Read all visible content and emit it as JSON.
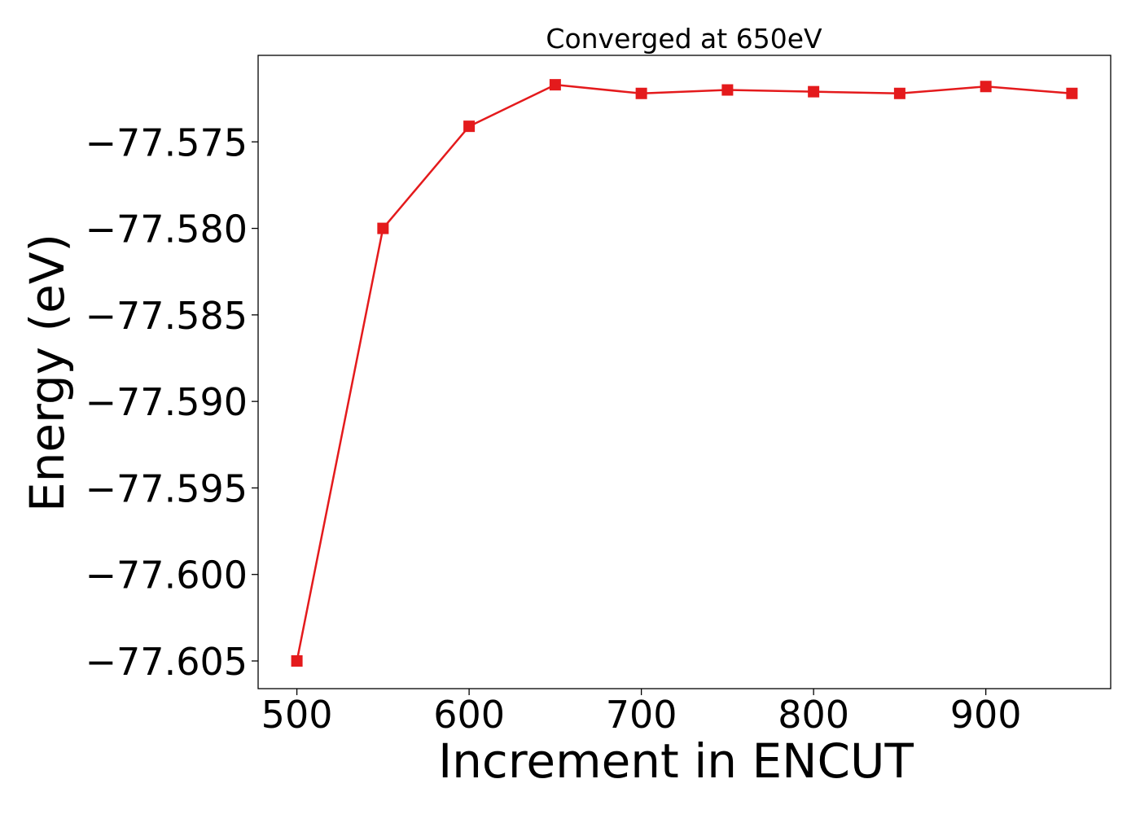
{
  "chart_data": {
    "type": "line",
    "title": "Converged at 650eV",
    "xlabel": "Increment in ENCUT",
    "ylabel": "Energy (eV)",
    "x": [
      500,
      550,
      600,
      650,
      700,
      750,
      800,
      850,
      900,
      950
    ],
    "series": [
      {
        "values": [
          -77.605,
          -77.58,
          -77.5741,
          -77.5717,
          -77.5722,
          -77.572,
          -77.5721,
          -77.5722,
          -77.5718,
          -77.5722
        ],
        "color": "#e41a1c",
        "marker": "square"
      }
    ],
    "xlim": [
      477.5,
      972.5
    ],
    "ylim": [
      -77.6066,
      -77.57
    ],
    "xticks": [
      500,
      600,
      700,
      800,
      900
    ],
    "xtick_labels": [
      "500",
      "600",
      "700",
      "800",
      "900"
    ],
    "yticks": [
      -77.575,
      -77.58,
      -77.585,
      -77.59,
      -77.595,
      -77.6,
      -77.605
    ],
    "ytick_labels": [
      "−77.575",
      "−77.580",
      "−77.585",
      "−77.590",
      "−77.595",
      "−77.600",
      "−77.605"
    ],
    "grid": false,
    "legend": "none"
  }
}
